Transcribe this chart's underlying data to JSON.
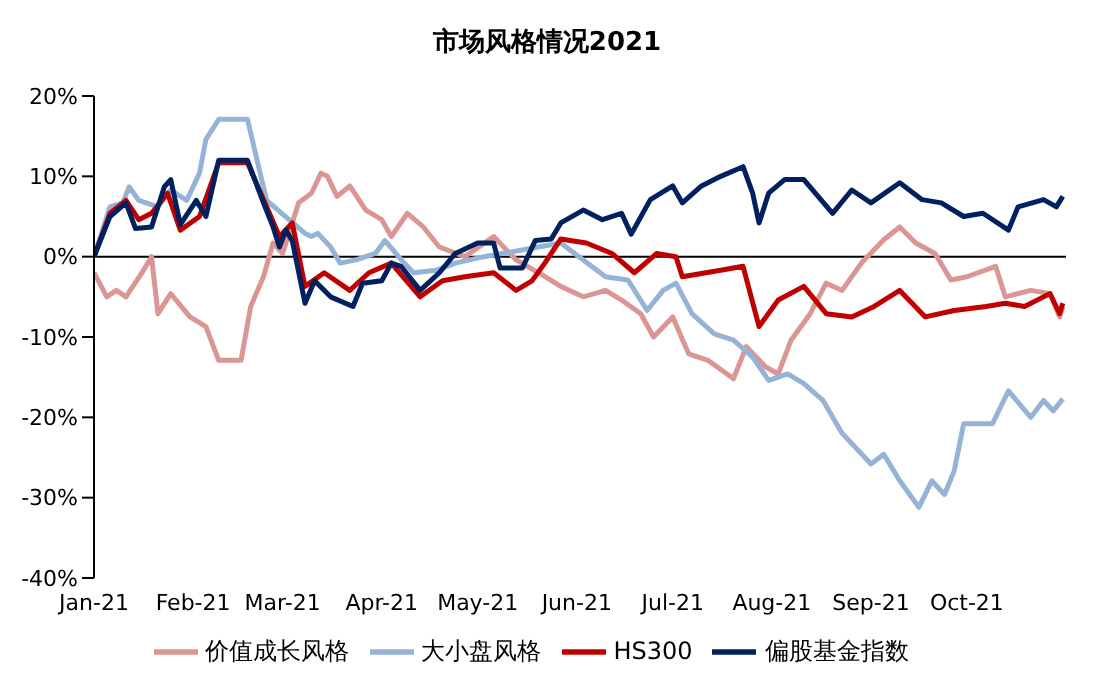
{
  "chart_data": {
    "type": "line",
    "title": "市场风格情况2021",
    "xlim": [
      "2021-01-01",
      "2021-11-01"
    ],
    "xticks": [
      {
        "value": "2021-01-01",
        "label": "Jan-21"
      },
      {
        "value": "2021-02-01",
        "label": "Feb-21"
      },
      {
        "value": "2021-03-01",
        "label": "Mar-21"
      },
      {
        "value": "2021-04-01",
        "label": "Apr-21"
      },
      {
        "value": "2021-05-01",
        "label": "May-21"
      },
      {
        "value": "2021-06-01",
        "label": "Jun-21"
      },
      {
        "value": "2021-07-01",
        "label": "Jul-21"
      },
      {
        "value": "2021-08-01",
        "label": "Aug-21"
      },
      {
        "value": "2021-09-01",
        "label": "Sep-21"
      },
      {
        "value": "2021-10-01",
        "label": "Oct-21"
      }
    ],
    "ylim": [
      -40,
      20
    ],
    "yticks": [
      {
        "value": -40,
        "label": "-40%"
      },
      {
        "value": -30,
        "label": "-30%"
      },
      {
        "value": -20,
        "label": "-20%"
      },
      {
        "value": -10,
        "label": "-10%"
      },
      {
        "value": 0,
        "label": "0%"
      },
      {
        "value": 10,
        "label": "10%"
      },
      {
        "value": 20,
        "label": "20%"
      }
    ],
    "ref_lines": [
      {
        "axis": "y",
        "value": 0,
        "color": "#000000"
      }
    ],
    "grid": false,
    "legend": "bottom",
    "marker": "none",
    "line_style": "solid",
    "series": [
      {
        "name": "价值成长风格",
        "color": "#d99694",
        "x": [
          "2021-01-01",
          "2021-01-05",
          "2021-01-08",
          "2021-01-11",
          "2021-01-16",
          "2021-01-19",
          "2021-01-21",
          "2021-01-25",
          "2021-01-31",
          "2021-02-05",
          "2021-02-09",
          "2021-02-16",
          "2021-02-19",
          "2021-02-23",
          "2021-02-26",
          "2021-03-01",
          "2021-03-06",
          "2021-03-10",
          "2021-03-13",
          "2021-03-15",
          "2021-03-18",
          "2021-03-22",
          "2021-03-27",
          "2021-04-01",
          "2021-04-04",
          "2021-04-09",
          "2021-04-14",
          "2021-04-19",
          "2021-04-27",
          "2021-05-06",
          "2021-05-13",
          "2021-05-20",
          "2021-05-27",
          "2021-06-03",
          "2021-06-10",
          "2021-06-15",
          "2021-06-21",
          "2021-06-25",
          "2021-07-01",
          "2021-07-06",
          "2021-07-12",
          "2021-07-18",
          "2021-07-20",
          "2021-07-24",
          "2021-07-30",
          "2021-08-03",
          "2021-08-07",
          "2021-08-13",
          "2021-08-18",
          "2021-08-23",
          "2021-08-29",
          "2021-09-05",
          "2021-09-10",
          "2021-09-15",
          "2021-09-21",
          "2021-09-26",
          "2021-10-01",
          "2021-10-10",
          "2021-10-13",
          "2021-10-21",
          "2021-10-27",
          "2021-10-30",
          "2021-10-31"
        ],
        "values": [
          -2,
          -5,
          -4.2,
          -5,
          -2,
          0,
          -7.1,
          -4.6,
          -7.5,
          -8.7,
          -12.9,
          -12.9,
          -6.2,
          -2.5,
          1.7,
          0.4,
          6.7,
          7.9,
          10.4,
          10,
          7.5,
          8.8,
          5.8,
          4.6,
          2.5,
          5.4,
          3.7,
          1.2,
          0,
          2.5,
          -0.4,
          -2,
          -3.7,
          -5,
          -4.2,
          -5.4,
          -7.1,
          -10,
          -7.5,
          -12.1,
          -12.9,
          -14.6,
          -15.2,
          -11.2,
          -13.7,
          -14.6,
          -10.4,
          -7.1,
          -3.3,
          -4.2,
          -0.8,
          2.1,
          3.7,
          1.7,
          0.4,
          -2.9,
          -2.5,
          -1.2,
          -5,
          -4.2,
          -4.6,
          -7.5,
          -6.2
        ]
      },
      {
        "name": "大小盘风格",
        "color": "#95b3d7",
        "x": [
          "2021-01-01",
          "2021-01-06",
          "2021-01-10",
          "2021-01-12",
          "2021-01-15",
          "2021-01-21",
          "2021-01-25",
          "2021-01-30",
          "2021-02-03",
          "2021-02-05",
          "2021-02-09",
          "2021-02-18",
          "2021-02-21",
          "2021-02-24",
          "2021-03-03",
          "2021-03-08",
          "2021-03-10",
          "2021-03-12",
          "2021-03-16",
          "2021-03-19",
          "2021-03-24",
          "2021-03-30",
          "2021-04-02",
          "2021-04-08",
          "2021-04-11",
          "2021-04-18",
          "2021-04-24",
          "2021-05-03",
          "2021-05-20",
          "2021-05-27",
          "2021-06-03",
          "2021-06-10",
          "2021-06-17",
          "2021-06-23",
          "2021-06-28",
          "2021-07-02",
          "2021-07-07",
          "2021-07-14",
          "2021-07-20",
          "2021-07-26",
          "2021-07-31",
          "2021-08-06",
          "2021-08-11",
          "2021-08-17",
          "2021-08-23",
          "2021-09-01",
          "2021-09-05",
          "2021-09-10",
          "2021-09-16",
          "2021-09-20",
          "2021-09-24",
          "2021-09-27",
          "2021-09-30",
          "2021-10-09",
          "2021-10-14",
          "2021-10-21",
          "2021-10-25",
          "2021-10-28",
          "2021-10-31"
        ],
        "values": [
          0,
          6.2,
          6.7,
          8.7,
          7,
          6.2,
          8.3,
          7,
          10.4,
          14.6,
          17.1,
          17.1,
          12,
          7,
          4.6,
          2.9,
          2.5,
          2.9,
          1.2,
          -0.8,
          -0.4,
          0.4,
          2,
          -0.8,
          -2,
          -1.7,
          -0.8,
          0,
          1.2,
          1.7,
          -0.4,
          -2.5,
          -2.9,
          -6.7,
          -4.2,
          -3.3,
          -7.1,
          -9.6,
          -10.4,
          -12.5,
          -15.4,
          -14.6,
          -15.8,
          -17.9,
          -22,
          -25.8,
          -24.6,
          -27.9,
          -31.2,
          -27.9,
          -29.6,
          -26.7,
          -20.8,
          -20.8,
          -16.7,
          -20,
          -17.9,
          -19.2,
          -17.7
        ]
      },
      {
        "name": "HS300",
        "color": "#c00000",
        "x": [
          "2021-01-01",
          "2021-01-06",
          "2021-01-11",
          "2021-01-15",
          "2021-01-19",
          "2021-01-24",
          "2021-01-28",
          "2021-02-03",
          "2021-02-09",
          "2021-02-18",
          "2021-02-24",
          "2021-02-28",
          "2021-03-04",
          "2021-03-08",
          "2021-03-14",
          "2021-03-22",
          "2021-03-28",
          "2021-04-04",
          "2021-04-13",
          "2021-04-20",
          "2021-04-27",
          "2021-05-06",
          "2021-05-13",
          "2021-05-18",
          "2021-05-22",
          "2021-05-27",
          "2021-06-04",
          "2021-06-12",
          "2021-06-19",
          "2021-06-26",
          "2021-07-02",
          "2021-07-04",
          "2021-07-16",
          "2021-07-23",
          "2021-07-28",
          "2021-08-03",
          "2021-08-11",
          "2021-08-18",
          "2021-08-26",
          "2021-09-02",
          "2021-09-10",
          "2021-09-18",
          "2021-09-27",
          "2021-10-07",
          "2021-10-13",
          "2021-10-19",
          "2021-10-27",
          "2021-10-30",
          "2021-10-31"
        ],
        "values": [
          0,
          5.4,
          7,
          4.6,
          5.4,
          7.9,
          3.3,
          5,
          11.7,
          11.7,
          6.2,
          2.5,
          4.2,
          -3.7,
          -2,
          -4.2,
          -2,
          -0.8,
          -5,
          -3,
          -2.5,
          -2,
          -4.2,
          -3,
          -0.8,
          2.2,
          1.7,
          0.4,
          -2,
          0.4,
          0,
          -2.5,
          -1.7,
          -1.2,
          -8.7,
          -5.4,
          -3.7,
          -7.1,
          -7.5,
          -6.2,
          -4.2,
          -7.5,
          -6.7,
          -6.2,
          -5.8,
          -6.2,
          -4.6,
          -7.1,
          -5.8
        ]
      },
      {
        "name": "偏股基金指数",
        "color": "#002060",
        "x": [
          "2021-01-01",
          "2021-01-06",
          "2021-01-11",
          "2021-01-14",
          "2021-01-19",
          "2021-01-23",
          "2021-01-25",
          "2021-01-28",
          "2021-02-02",
          "2021-02-05",
          "2021-02-09",
          "2021-02-18",
          "2021-02-23",
          "2021-02-26",
          "2021-02-28",
          "2021-03-02",
          "2021-03-04",
          "2021-03-08",
          "2021-03-11",
          "2021-03-16",
          "2021-03-23",
          "2021-03-26",
          "2021-04-01",
          "2021-04-04",
          "2021-04-07",
          "2021-04-13",
          "2021-04-19",
          "2021-04-24",
          "2021-05-01",
          "2021-05-06",
          "2021-05-08",
          "2021-05-15",
          "2021-05-19",
          "2021-05-24",
          "2021-05-27",
          "2021-06-03",
          "2021-06-09",
          "2021-06-15",
          "2021-06-18",
          "2021-06-24",
          "2021-07-01",
          "2021-07-04",
          "2021-07-10",
          "2021-07-16",
          "2021-07-23",
          "2021-07-26",
          "2021-07-28",
          "2021-07-31",
          "2021-08-05",
          "2021-08-11",
          "2021-08-20",
          "2021-08-26",
          "2021-09-01",
          "2021-09-10",
          "2021-09-17",
          "2021-09-23",
          "2021-09-30",
          "2021-10-06",
          "2021-10-14",
          "2021-10-17",
          "2021-10-25",
          "2021-10-29",
          "2021-10-31"
        ],
        "values": [
          0,
          5,
          6.7,
          3.5,
          3.7,
          8.7,
          9.6,
          4,
          7,
          5,
          12,
          12,
          6.7,
          3.7,
          1.2,
          3.3,
          2,
          -5.8,
          -3,
          -5,
          -6.2,
          -3.3,
          -3,
          -0.8,
          -1.2,
          -4.2,
          -2,
          0.4,
          1.7,
          1.7,
          -1.4,
          -1.4,
          2,
          2.2,
          4.2,
          5.8,
          4.6,
          5.4,
          2.8,
          7.1,
          8.8,
          6.7,
          8.8,
          10,
          11.2,
          7.9,
          4.2,
          7.9,
          9.6,
          9.6,
          5.4,
          8.3,
          6.7,
          9.2,
          7.1,
          6.7,
          5,
          5.4,
          3.3,
          6.2,
          7.1,
          6.2,
          7.5
        ]
      }
    ]
  }
}
